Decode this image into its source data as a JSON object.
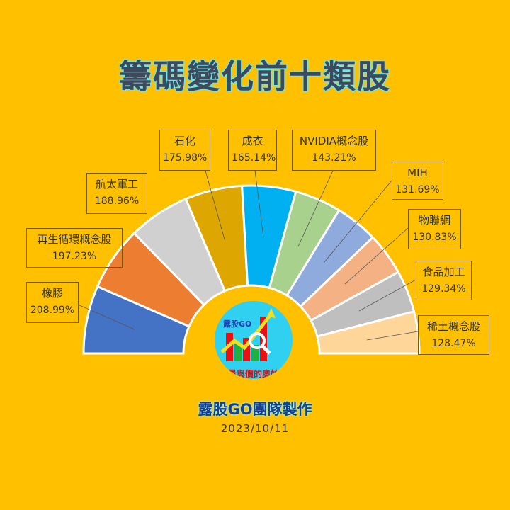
{
  "title": "籌碼變化前十類股",
  "credit": "露股GO團隊製作",
  "date": "2023/10/11",
  "logo": {
    "brand": "露股GO",
    "slogan": "量與價的奧妙"
  },
  "chart_data": {
    "type": "pie",
    "variant": "half-doughnut",
    "title": "籌碼變化前十類股",
    "categories": [
      "橡膠",
      "再生循環概念股",
      "航太軍工",
      "石化",
      "成衣",
      "NVIDIA概念股",
      "MIH",
      "物聯網",
      "食品加工",
      "稀土概念股"
    ],
    "values": [
      208.99,
      197.23,
      188.96,
      175.98,
      165.14,
      143.21,
      131.69,
      130.83,
      129.34,
      128.47
    ],
    "labels": [
      "208.99%",
      "197.23%",
      "188.96%",
      "175.98%",
      "165.14%",
      "143.21%",
      "131.69%",
      "130.83%",
      "129.34%",
      "128.47%"
    ],
    "colors": [
      "#4472C4",
      "#ED7D31",
      "#D0D0D0",
      "#DDA600",
      "#00B0F0",
      "#A9D18E",
      "#8FAADC",
      "#F4B183",
      "#BFBFBF",
      "#FFD699"
    ],
    "background": "#FFC000",
    "legend": "none"
  }
}
